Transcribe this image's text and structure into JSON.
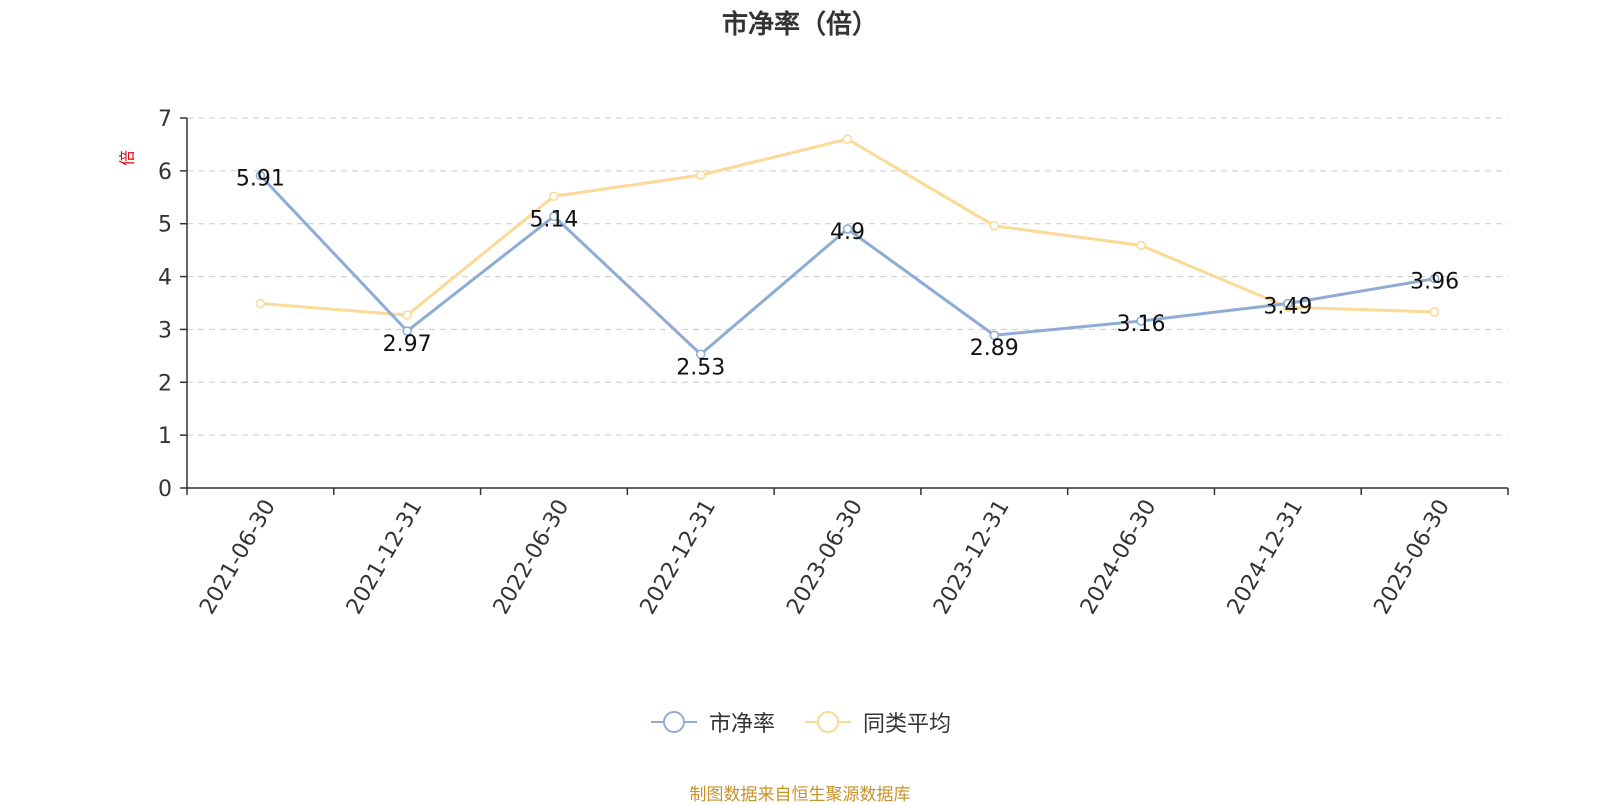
{
  "chart_data": {
    "type": "line",
    "title": "市净率（倍）",
    "ylabel": "倍",
    "xlabel": "",
    "ylim": [
      0,
      7
    ],
    "yticks": [
      0,
      1,
      2,
      3,
      4,
      5,
      6,
      7
    ],
    "grid": true,
    "legend_position": "bottom",
    "categories": [
      "2021-06-30",
      "2021-12-31",
      "2022-06-30",
      "2022-12-31",
      "2023-06-30",
      "2023-12-31",
      "2024-06-30",
      "2024-12-31",
      "2025-06-30"
    ],
    "series": [
      {
        "name": "市净率",
        "color": "#8eacd6",
        "values": [
          5.91,
          2.97,
          5.14,
          2.53,
          4.9,
          2.89,
          3.16,
          3.49,
          3.96
        ],
        "show_labels": true
      },
      {
        "name": "同类平均",
        "color": "#fbd996",
        "values": [
          3.49,
          3.27,
          5.52,
          5.92,
          6.6,
          4.96,
          4.59,
          3.42,
          3.33
        ],
        "show_labels": false
      }
    ]
  },
  "footer": {
    "source": "制图数据来自恒生聚源数据库"
  },
  "colors": {
    "axis": "#333333",
    "grid": "#cccccc",
    "ylabel": "#e0000b",
    "title": "#333333",
    "source": "#c8922a"
  }
}
